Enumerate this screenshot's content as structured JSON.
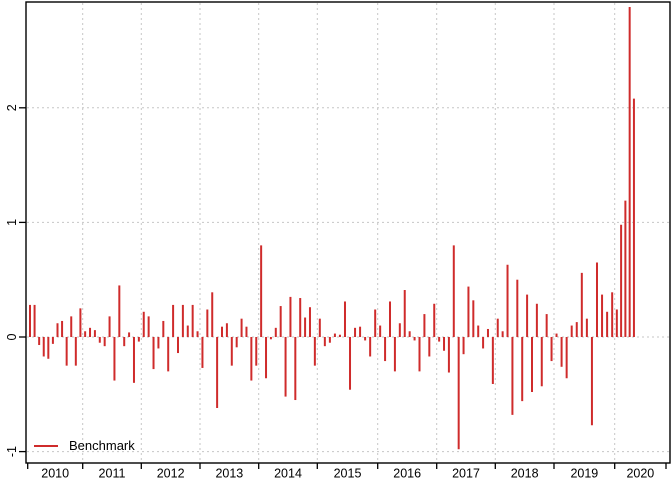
{
  "chart_data": {
    "type": "bar",
    "subtype": "time-series-spikes-from-zero",
    "title": "",
    "frequency": "monthly",
    "start": "2010-01",
    "end": "2020-05",
    "grid": true,
    "legend_position": "bottom-left",
    "legend": [
      {
        "label": "Benchmark",
        "color": "#cf2b2b"
      }
    ],
    "x_axis": {
      "year_labels": [
        "2010",
        "2011",
        "2012",
        "2013",
        "2014",
        "2015",
        "2016",
        "2017",
        "2018",
        "2019",
        "2020"
      ]
    },
    "y_axis": {
      "ticks": [
        -1,
        0,
        1,
        2
      ],
      "range": [
        -1.05,
        2.95
      ]
    },
    "colors": {
      "bar": "#cf2b2b",
      "grid": "#c6c6c6",
      "axis": "#000000",
      "text": "#000000",
      "background": "#ffffff"
    },
    "series": [
      {
        "name": "Benchmark",
        "values": [
          0.28,
          0.28,
          -0.07,
          -0.17,
          -0.19,
          -0.06,
          0.12,
          0.14,
          -0.25,
          0.18,
          -0.25,
          0.25,
          0.05,
          0.08,
          0.06,
          -0.05,
          -0.08,
          0.18,
          -0.38,
          0.45,
          -0.08,
          0.04,
          -0.4,
          -0.04,
          0.22,
          0.18,
          -0.28,
          -0.1,
          0.14,
          -0.3,
          0.28,
          -0.14,
          0.28,
          0.1,
          0.28,
          0.05,
          -0.27,
          0.24,
          0.39,
          -0.62,
          0.09,
          0.12,
          -0.25,
          -0.09,
          0.16,
          0.09,
          -0.38,
          -0.25,
          0.8,
          -0.36,
          -0.02,
          0.08,
          0.27,
          -0.52,
          0.35,
          -0.55,
          0.34,
          0.17,
          0.26,
          -0.25,
          0.16,
          -0.08,
          -0.05,
          0.03,
          0.02,
          0.31,
          -0.46,
          0.08,
          0.09,
          -0.03,
          -0.17,
          0.24,
          0.1,
          -0.21,
          0.31,
          -0.3,
          0.12,
          0.41,
          0.05,
          -0.03,
          -0.3,
          0.2,
          -0.17,
          0.29,
          -0.04,
          -0.12,
          -0.31,
          0.8,
          -0.98,
          -0.15,
          0.44,
          0.32,
          0.1,
          -0.1,
          0.07,
          -0.41,
          0.16,
          0.05,
          0.63,
          -0.68,
          0.5,
          -0.56,
          0.37,
          -0.48,
          0.29,
          -0.43,
          0.2,
          -0.21,
          0.03,
          -0.26,
          -0.36,
          0.1,
          0.13,
          0.56,
          0.16,
          -0.77,
          0.65,
          0.37,
          0.22,
          0.39,
          0.24,
          0.98,
          1.19,
          2.88,
          2.08
        ]
      }
    ]
  }
}
